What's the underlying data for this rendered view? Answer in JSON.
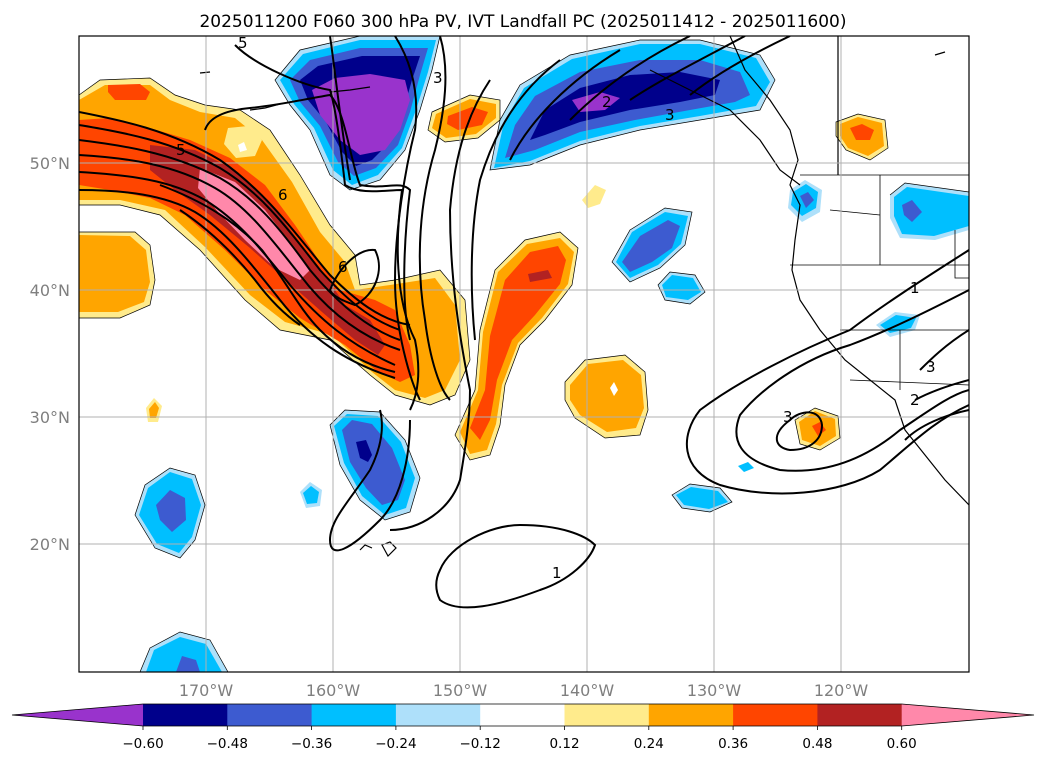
{
  "title": "2025011200 F060 300 hPa PV, IVT Landfall PC (2025011412 - 2025011600)",
  "longitude_labels": [
    "170°W",
    "160°W",
    "150°W",
    "140°W",
    "130°W",
    "120°W"
  ],
  "latitude_labels": [
    "50°N",
    "40°N",
    "30°N",
    "20°N"
  ],
  "colorbar": {
    "ticks": [
      "−0.60",
      "−0.48",
      "−0.36",
      "−0.24",
      "−0.12",
      "0.12",
      "0.24",
      "0.36",
      "0.48",
      "0.60"
    ],
    "colors": [
      "#9933cc",
      "#00008b",
      "#3d5bd0",
      "#00bfff",
      "#aee0fa",
      "#ffffff",
      "#ffeb8c",
      "#ffa500",
      "#ff4500",
      "#b22222",
      "#ff88aa"
    ]
  },
  "contour_labels": [
    "5",
    "6",
    "6",
    "3",
    "5",
    "2",
    "1",
    "3",
    "3",
    "2",
    "1",
    "3"
  ]
}
